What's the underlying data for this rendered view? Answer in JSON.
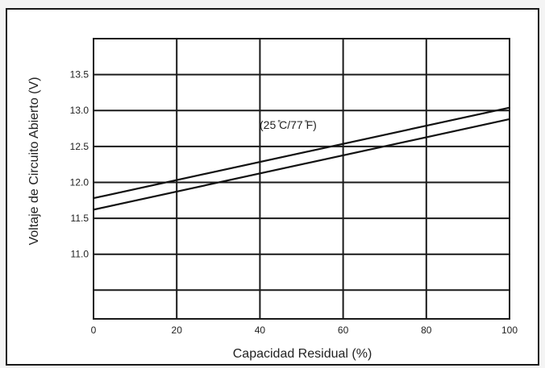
{
  "chart_data": {
    "type": "line",
    "title": "",
    "xlabel": "Capacidad Residual (%)",
    "ylabel": "Voltaje de Circuito Abierto (V)",
    "annotation": "(25 ̊C/77 ̊F)",
    "xlim": [
      0,
      100
    ],
    "ylim": [
      10.1,
      14.0
    ],
    "x_ticks": [
      0,
      20,
      40,
      60,
      80,
      100
    ],
    "y_ticks": [
      11.0,
      11.5,
      12.0,
      12.5,
      13.0,
      13.5
    ],
    "grid": true,
    "series": [
      {
        "x": [
          0,
          100
        ],
        "values": [
          11.78,
          13.04
        ]
      },
      {
        "x": [
          0,
          100
        ],
        "values": [
          11.62,
          12.88
        ]
      }
    ]
  }
}
